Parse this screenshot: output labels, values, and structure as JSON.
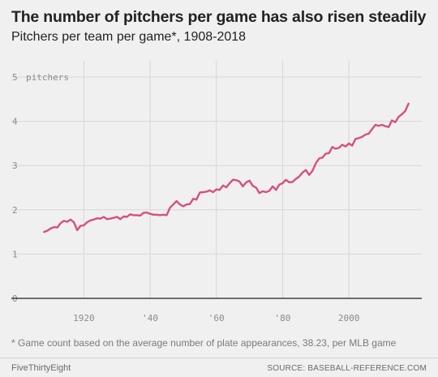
{
  "header": {
    "title": "The number of pitchers per game has also risen steadily",
    "subtitle": "Pitchers per team per game*, 1908-2018"
  },
  "footer": {
    "footnote": "* Game count based on the average number of plate appearances, 38.23, per MLB game",
    "brand": "FiveThirtyEight",
    "source": "SOURCE: BASEBALL-REFERENCE.COM"
  },
  "chart_data": {
    "type": "line",
    "title": "The number of pitchers per game has also risen steadily",
    "subtitle": "Pitchers per team per game*, 1908-2018",
    "xlim": [
      1904,
      2022
    ],
    "ylim": [
      0,
      5
    ],
    "grid": true,
    "x_ticks": [
      1920,
      1940,
      1960,
      1980,
      2000
    ],
    "x_tick_labels": [
      "1920",
      "'40",
      "'60",
      "'80",
      "2000"
    ],
    "y_ticks": [
      0,
      1,
      2,
      3,
      4,
      5
    ],
    "y_tick_labels": [
      "0",
      "1",
      "2",
      "3",
      "4",
      "5"
    ],
    "y_unit_label": "pitchers",
    "colors": {
      "line": "#d6507a",
      "grid": "#d6d6d6",
      "tick": "#8a8a8a",
      "baseline": "#222222"
    },
    "series": [
      {
        "x": [
          1908,
          1909,
          1910,
          1911,
          1912,
          1913,
          1914,
          1915,
          1916,
          1917,
          1918,
          1919,
          1920,
          1921,
          1922,
          1923,
          1924,
          1925,
          1926,
          1927,
          1928,
          1929,
          1930,
          1931,
          1932,
          1933,
          1934,
          1935,
          1936,
          1937,
          1938,
          1939,
          1940,
          1941,
          1942,
          1943,
          1944,
          1945,
          1946,
          1947,
          1948,
          1949,
          1950,
          1951,
          1952,
          1953,
          1954,
          1955,
          1956,
          1957,
          1958,
          1959,
          1960,
          1961,
          1962,
          1963,
          1964,
          1965,
          1966,
          1967,
          1968,
          1969,
          1970,
          1971,
          1972,
          1973,
          1974,
          1975,
          1976,
          1977,
          1978,
          1979,
          1980,
          1981,
          1982,
          1983,
          1984,
          1985,
          1986,
          1987,
          1988,
          1989,
          1990,
          1991,
          1992,
          1993,
          1994,
          1995,
          1996,
          1997,
          1998,
          1999,
          2000,
          2001,
          2002,
          2003,
          2004,
          2005,
          2006,
          2007,
          2008,
          2009,
          2010,
          2011,
          2012,
          2013,
          2014,
          2015,
          2016,
          2017,
          2018
        ],
        "values": [
          1.5,
          1.53,
          1.58,
          1.61,
          1.6,
          1.7,
          1.75,
          1.73,
          1.78,
          1.72,
          1.54,
          1.64,
          1.65,
          1.72,
          1.76,
          1.78,
          1.81,
          1.8,
          1.84,
          1.79,
          1.8,
          1.82,
          1.84,
          1.79,
          1.85,
          1.84,
          1.9,
          1.88,
          1.88,
          1.87,
          1.93,
          1.94,
          1.91,
          1.89,
          1.89,
          1.88,
          1.89,
          1.88,
          2.05,
          2.12,
          2.2,
          2.12,
          2.08,
          2.12,
          2.13,
          2.25,
          2.23,
          2.39,
          2.4,
          2.41,
          2.44,
          2.4,
          2.46,
          2.45,
          2.55,
          2.51,
          2.6,
          2.68,
          2.67,
          2.64,
          2.53,
          2.62,
          2.66,
          2.54,
          2.5,
          2.38,
          2.42,
          2.4,
          2.43,
          2.53,
          2.45,
          2.57,
          2.6,
          2.68,
          2.62,
          2.63,
          2.7,
          2.75,
          2.84,
          2.9,
          2.79,
          2.88,
          3.05,
          3.16,
          3.18,
          3.27,
          3.28,
          3.42,
          3.38,
          3.4,
          3.47,
          3.43,
          3.5,
          3.45,
          3.6,
          3.62,
          3.65,
          3.7,
          3.72,
          3.82,
          3.92,
          3.9,
          3.92,
          3.89,
          3.87,
          4.02,
          3.98,
          4.1,
          4.16,
          4.23,
          4.4
        ]
      }
    ]
  }
}
